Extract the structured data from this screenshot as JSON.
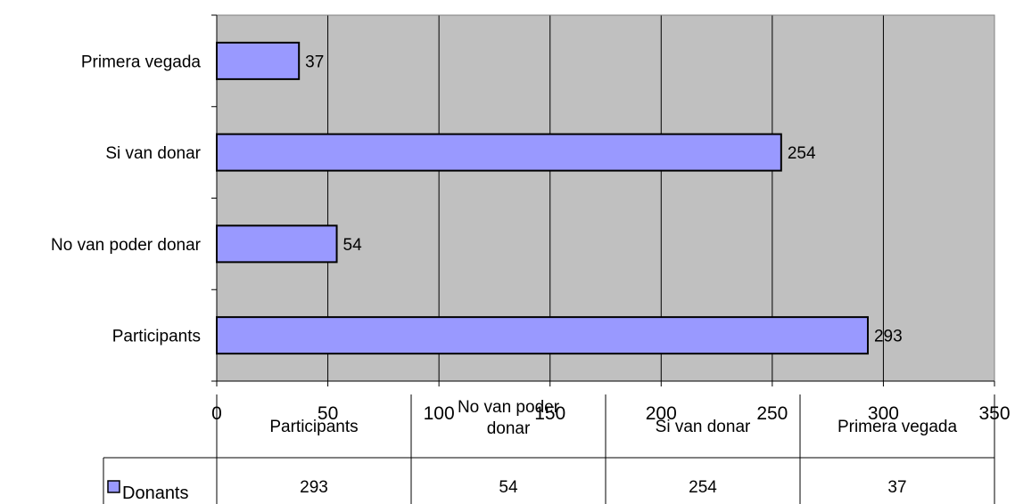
{
  "chart_data": {
    "type": "bar",
    "orientation": "horizontal",
    "categories": [
      "Participants",
      "No van poder donar",
      "Si van donar",
      "Primera vegada"
    ],
    "series": [
      {
        "name": "Donants",
        "values": [
          293,
          54,
          254,
          37
        ],
        "color": "#9999ff"
      }
    ],
    "x_ticks": [
      0,
      50,
      100,
      150,
      200,
      250,
      300,
      350
    ],
    "xlim": [
      0,
      350
    ],
    "grid": "vertical",
    "data_labels": true,
    "plot_background": "#c0c0c0",
    "data_table": {
      "headers": [
        "Participants",
        [
          "No van poder",
          "donar"
        ],
        "Si van donar",
        "Primera vegada"
      ],
      "row_label": "Donants",
      "values": [
        "293",
        "54",
        "254",
        "37"
      ]
    }
  }
}
